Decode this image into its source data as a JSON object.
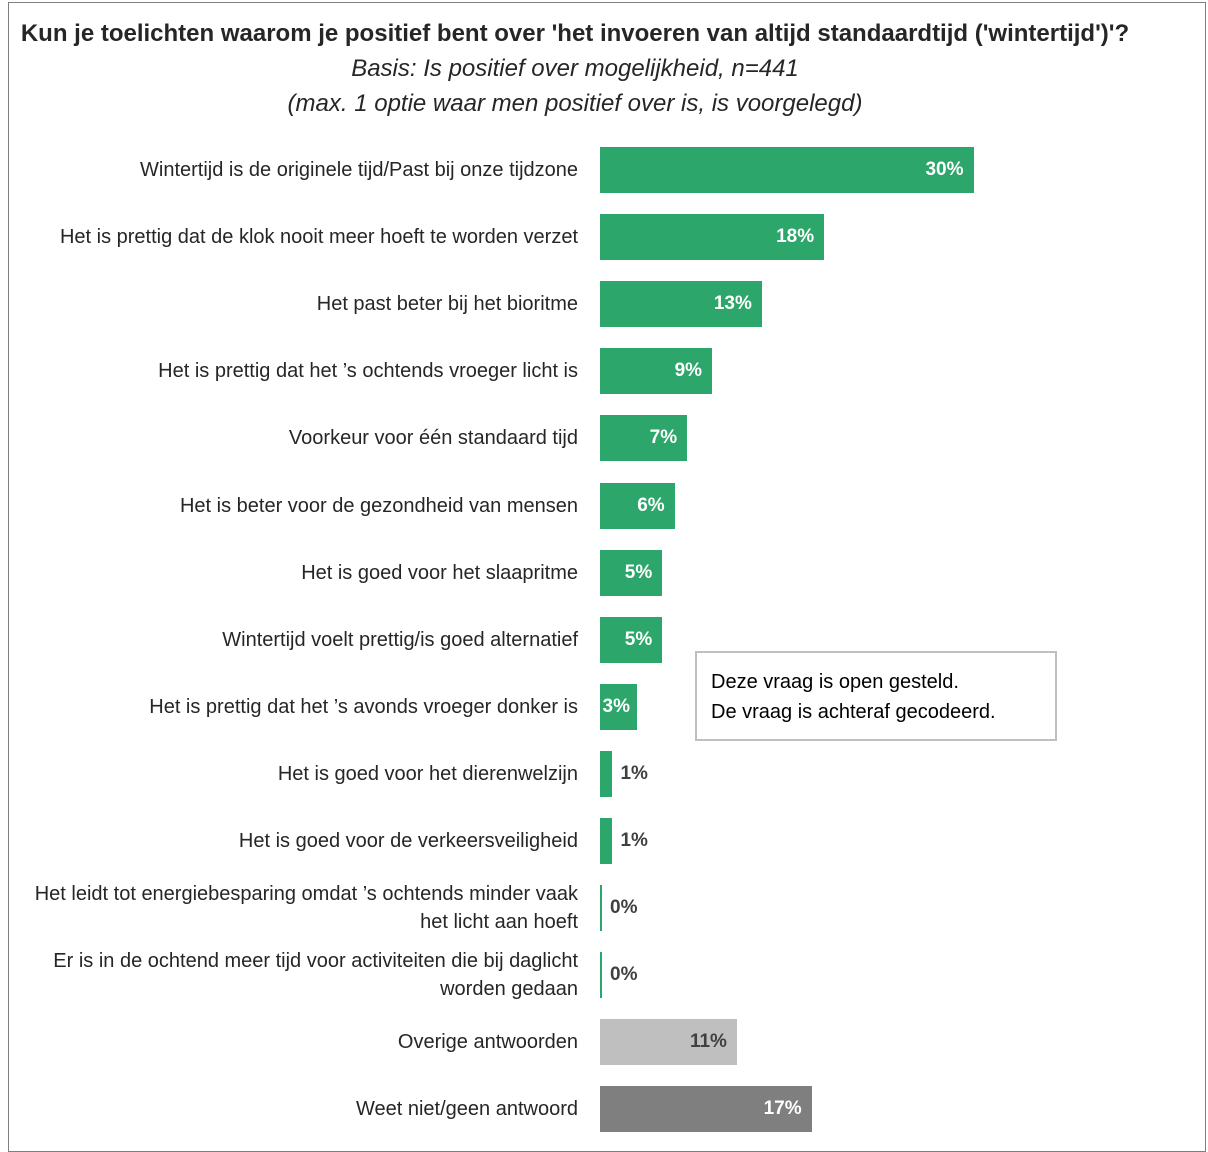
{
  "chart_data": {
    "type": "bar",
    "orientation": "horizontal",
    "title": "Kun je toelichten waarom je positief bent over 'het invoeren van altijd standaardtijd ('wintertijd')'?",
    "subtitle": "Basis: Is positief over mogelijkheid, n=441",
    "subtitle2": "(max. 1 optie waar men positief over is, is voorgelegd)",
    "categories": [
      "Wintertijd is de originele tijd/Past bij onze tijdzone",
      "Het is prettig dat de klok nooit meer hoeft te worden verzet",
      "Het past beter bij het bioritme",
      "Het is prettig dat het ’s ochtends vroeger licht is",
      "Voorkeur voor één standaard tijd",
      "Het is beter voor de gezondheid van mensen",
      "Het is goed voor het slaapritme",
      "Wintertijd voelt prettig/is goed alternatief",
      "Het is prettig dat het ’s avonds vroeger donker is",
      "Het is goed voor het dierenwelzijn",
      "Het is goed voor de verkeersveiligheid",
      "Het leidt tot energiebesparing omdat ’s ochtends minder vaak het licht aan hoeft",
      "Er is in de ochtend meer tijd voor activiteiten die bij daglicht worden gedaan",
      "Overige antwoorden",
      "Weet niet/geen antwoord"
    ],
    "values": [
      30,
      18,
      13,
      9,
      7,
      6,
      5,
      5,
      3,
      1,
      1,
      0,
      0,
      11,
      17
    ],
    "value_labels": [
      "30%",
      "18%",
      "13%",
      "9%",
      "7%",
      "6%",
      "5%",
      "5%",
      "3%",
      "1%",
      "1%",
      "0%",
      "0%",
      "11%",
      "17%"
    ],
    "bar_colors": [
      "#2ca66a",
      "#2ca66a",
      "#2ca66a",
      "#2ca66a",
      "#2ca66a",
      "#2ca66a",
      "#2ca66a",
      "#2ca66a",
      "#2ca66a",
      "#2ca66a",
      "#2ca66a",
      "#2ca66a",
      "#2ca66a",
      "#bfbfbf",
      "#7f7f7f"
    ],
    "xlim": [
      0,
      100
    ],
    "grid": false,
    "legend": "none"
  },
  "annotation": {
    "line1": "Deze vraag is open gesteld.",
    "line2": "De vraag is achteraf gecodeerd."
  },
  "colors": {
    "bar_green": "#2ca66a",
    "bar_light_gray": "#bfbfbf",
    "bar_dark_gray": "#7f7f7f",
    "label_inside": "#ffffff",
    "label_outside": "#404040"
  }
}
